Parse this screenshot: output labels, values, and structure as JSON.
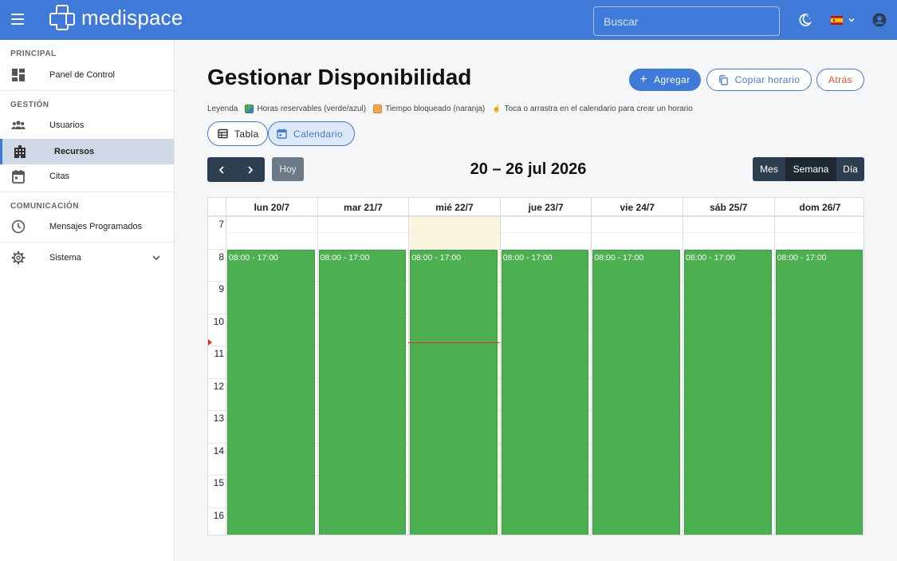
{
  "app": {
    "brand": "medispace",
    "search_placeholder": "Buscar"
  },
  "sidebar": {
    "sections": [
      {
        "title": "PRINCIPAL"
      },
      {
        "title": "GESTIÓN"
      },
      {
        "title": "COMUNICACIÓN"
      }
    ],
    "items": [
      {
        "label": "Panel de Control",
        "icon": "dashboard-icon"
      },
      {
        "label": "Usuarios",
        "icon": "users-icon"
      },
      {
        "label": "Recursos",
        "icon": "building-icon",
        "active": true
      },
      {
        "label": "Citas",
        "icon": "calendar-icon"
      },
      {
        "label": "Mensajes Programados",
        "icon": "clock-icon"
      },
      {
        "label": "Sistema",
        "icon": "gear-icon"
      }
    ]
  },
  "main": {
    "title": "Gestionar Disponibilidad",
    "add_label": "Agregar",
    "copy_label": "Copiar horario",
    "back_label": "Atrás",
    "legend": {
      "label": "Leyenda",
      "bookable": "Horas reservables (verde/azul)",
      "blocked": "Tiempo bloqueado (naranja)",
      "hint": "Toca o arrastra en el calendario para crear un horario",
      "bookable_color": "#4caf50",
      "blocked_color": "#f5a64a"
    },
    "tabs": {
      "table": "Tabla",
      "calendar": "Calendario"
    },
    "today_label": "Hoy",
    "range_label": "20 – 26 jul 2026",
    "views": [
      "Mes",
      "Semana",
      "Día"
    ],
    "active_view": "Semana"
  },
  "calendar": {
    "days": [
      "lun 20/7",
      "mar 21/7",
      "mié 22/7",
      "jue 23/7",
      "vie 24/7",
      "sáb 25/7",
      "dom 26/7"
    ],
    "today_index": 2,
    "hours": [
      "7",
      "8",
      "9",
      "10",
      "11",
      "12",
      "13",
      "14",
      "15",
      "16"
    ],
    "events": [
      {
        "day": 0,
        "label": "08:00 - 17:00"
      },
      {
        "day": 1,
        "label": "08:00 - 17:00"
      },
      {
        "day": 2,
        "label": "08:00 - 17:00"
      },
      {
        "day": 3,
        "label": "08:00 - 17:00"
      },
      {
        "day": 4,
        "label": "08:00 - 17:00"
      },
      {
        "day": 5,
        "label": "08:00 - 17:00"
      },
      {
        "day": 6,
        "label": "08:00 - 17:00"
      }
    ]
  }
}
